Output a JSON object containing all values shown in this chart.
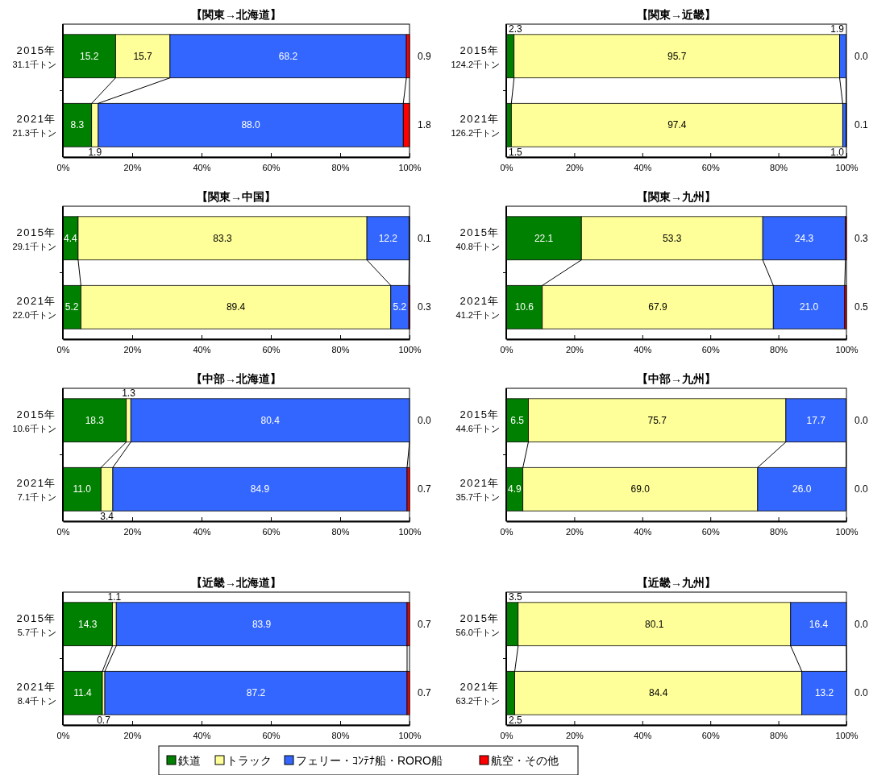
{
  "chart_data": [
    {
      "type": "bar",
      "orientation": "horizontal",
      "stacked": true,
      "legend": "bottom",
      "title": "【関東→北海道】",
      "categories": [
        "2015年\n31.1千トン",
        "2021年\n21.3千トン"
      ],
      "xlim": [
        0,
        100
      ],
      "xticks": [
        {
          "value": 0,
          "label": "0%"
        },
        {
          "value": 20,
          "label": "20%"
        },
        {
          "value": 40,
          "label": "40%"
        },
        {
          "value": 60,
          "label": "60%"
        },
        {
          "value": 80,
          "label": "80%"
        },
        {
          "value": 100,
          "label": "100%"
        }
      ],
      "series": [
        {
          "name": "鉄道",
          "color": "#008000",
          "values": [
            15.2,
            8.3
          ],
          "value_labels": [
            "15.2",
            "8.3"
          ]
        },
        {
          "name": "トラック",
          "color": "#ffff99",
          "values": [
            15.7,
            1.9
          ],
          "value_labels": [
            "15.7",
            "1.9"
          ]
        },
        {
          "name": "フェリー・ｺﾝﾃﾅ船・RORO船",
          "color": "#3366ff",
          "values": [
            68.2,
            88.0
          ],
          "value_labels": [
            "68.2",
            "88.0"
          ]
        },
        {
          "name": "航空・その他",
          "color": "#ff0000",
          "values": [
            0.9,
            1.8
          ],
          "value_labels": [
            "0.9",
            "1.8"
          ]
        }
      ]
    },
    {
      "type": "bar",
      "orientation": "horizontal",
      "stacked": true,
      "title": "【関東→近畿】",
      "categories": [
        "2015年\n124.2千トン",
        "2021年\n126.2千トン"
      ],
      "xlim": [
        0,
        100
      ],
      "xticks": [
        {
          "value": 0,
          "label": "0%"
        },
        {
          "value": 20,
          "label": "20%"
        },
        {
          "value": 40,
          "label": "40%"
        },
        {
          "value": 60,
          "label": "60%"
        },
        {
          "value": 80,
          "label": "80%"
        },
        {
          "value": 100,
          "label": "100%"
        }
      ],
      "series": [
        {
          "color": "#008000",
          "values": [
            2.3,
            1.5
          ],
          "value_labels": [
            "2.3",
            "1.5"
          ]
        },
        {
          "color": "#ffff99",
          "values": [
            95.7,
            97.4
          ],
          "value_labels": [
            "95.7",
            "97.4"
          ]
        },
        {
          "color": "#3366ff",
          "values": [
            1.9,
            1.0
          ],
          "value_labels": [
            "1.9",
            "1.0"
          ]
        },
        {
          "color": "#ff0000",
          "values": [
            0.0,
            0.1
          ],
          "value_labels": [
            "0.0",
            "0.1"
          ]
        }
      ]
    },
    {
      "type": "bar",
      "orientation": "horizontal",
      "stacked": true,
      "title": "【関東→中国】",
      "categories": [
        "2015年\n29.1千トン",
        "2021年\n22.0千トン"
      ],
      "xlim": [
        0,
        100
      ],
      "xticks": [
        {
          "value": 0,
          "label": "0%"
        },
        {
          "value": 20,
          "label": "20%"
        },
        {
          "value": 40,
          "label": "40%"
        },
        {
          "value": 60,
          "label": "60%"
        },
        {
          "value": 80,
          "label": "80%"
        },
        {
          "value": 100,
          "label": "100%"
        }
      ],
      "series": [
        {
          "color": "#008000",
          "values": [
            4.4,
            5.2
          ],
          "value_labels": [
            "4.4",
            "5.2"
          ]
        },
        {
          "color": "#ffff99",
          "values": [
            83.3,
            89.4
          ],
          "value_labels": [
            "83.3",
            "89.4"
          ]
        },
        {
          "color": "#3366ff",
          "values": [
            12.2,
            5.2
          ],
          "value_labels": [
            "12.2",
            "5.2"
          ]
        },
        {
          "color": "#ff0000",
          "values": [
            0.1,
            0.3
          ],
          "value_labels": [
            "0.1",
            "0.3"
          ]
        }
      ]
    },
    {
      "type": "bar",
      "orientation": "horizontal",
      "stacked": true,
      "title": "【関東→九州】",
      "categories": [
        "2015年\n40.8千トン",
        "2021年\n41.2千トン"
      ],
      "xlim": [
        0,
        100
      ],
      "xticks": [
        {
          "value": 0,
          "label": "0%"
        },
        {
          "value": 20,
          "label": "20%"
        },
        {
          "value": 40,
          "label": "40%"
        },
        {
          "value": 60,
          "label": "60%"
        },
        {
          "value": 80,
          "label": "80%"
        },
        {
          "value": 100,
          "label": "100%"
        }
      ],
      "series": [
        {
          "color": "#008000",
          "values": [
            22.1,
            10.6
          ],
          "value_labels": [
            "22.1",
            "10.6"
          ]
        },
        {
          "color": "#ffff99",
          "values": [
            53.3,
            67.9
          ],
          "value_labels": [
            "53.3",
            "67.9"
          ]
        },
        {
          "color": "#3366ff",
          "values": [
            24.3,
            21.0
          ],
          "value_labels": [
            "24.3",
            "21.0"
          ]
        },
        {
          "color": "#ff0000",
          "values": [
            0.3,
            0.5
          ],
          "value_labels": [
            "0.3",
            "0.5"
          ]
        }
      ]
    },
    {
      "type": "bar",
      "orientation": "horizontal",
      "stacked": true,
      "title": "【中部→北海道】",
      "categories": [
        "2015年\n10.6千トン",
        "2021年\n7.1千トン"
      ],
      "xlim": [
        0,
        100
      ],
      "xticks": [
        {
          "value": 0,
          "label": "0%"
        },
        {
          "value": 20,
          "label": "20%"
        },
        {
          "value": 40,
          "label": "40%"
        },
        {
          "value": 60,
          "label": "60%"
        },
        {
          "value": 80,
          "label": "80%"
        },
        {
          "value": 100,
          "label": "100%"
        }
      ],
      "series": [
        {
          "color": "#008000",
          "values": [
            18.3,
            11.0
          ],
          "value_labels": [
            "18.3",
            "11.0"
          ]
        },
        {
          "color": "#ffff99",
          "values": [
            1.3,
            3.4
          ],
          "value_labels": [
            "1.3",
            "3.4"
          ]
        },
        {
          "color": "#3366ff",
          "values": [
            80.4,
            84.9
          ],
          "value_labels": [
            "80.4",
            "84.9"
          ]
        },
        {
          "color": "#ff0000",
          "values": [
            0.0,
            0.7
          ],
          "value_labels": [
            "0.0",
            "0.7"
          ]
        }
      ]
    },
    {
      "type": "bar",
      "orientation": "horizontal",
      "stacked": true,
      "title": "【中部→九州】",
      "categories": [
        "2015年\n44.6千トン",
        "2021年\n35.7千トン"
      ],
      "xlim": [
        0,
        100
      ],
      "xticks": [
        {
          "value": 0,
          "label": "0%"
        },
        {
          "value": 20,
          "label": "20%"
        },
        {
          "value": 40,
          "label": "40%"
        },
        {
          "value": 60,
          "label": "60%"
        },
        {
          "value": 80,
          "label": "80%"
        },
        {
          "value": 100,
          "label": "100%"
        }
      ],
      "series": [
        {
          "color": "#008000",
          "values": [
            6.5,
            4.9
          ],
          "value_labels": [
            "6.5",
            "4.9"
          ]
        },
        {
          "color": "#ffff99",
          "values": [
            75.7,
            69.0
          ],
          "value_labels": [
            "75.7",
            "69.0"
          ]
        },
        {
          "color": "#3366ff",
          "values": [
            17.7,
            26.0
          ],
          "value_labels": [
            "17.7",
            "26.0"
          ]
        },
        {
          "color": "#ff0000",
          "values": [
            0.0,
            0.0
          ],
          "value_labels": [
            "0.0",
            "0.0"
          ]
        }
      ]
    },
    {
      "type": "bar",
      "orientation": "horizontal",
      "stacked": true,
      "title": "【近畿→北海道】",
      "categories": [
        "2015年\n5.7千トン",
        "2021年\n8.4千トン"
      ],
      "xlim": [
        0,
        100
      ],
      "xticks": [
        {
          "value": 0,
          "label": "0%"
        },
        {
          "value": 20,
          "label": "20%"
        },
        {
          "value": 40,
          "label": "40%"
        },
        {
          "value": 60,
          "label": "60%"
        },
        {
          "value": 80,
          "label": "80%"
        },
        {
          "value": 100,
          "label": "100%"
        }
      ],
      "series": [
        {
          "color": "#008000",
          "values": [
            14.3,
            11.4
          ],
          "value_labels": [
            "14.3",
            "11.4"
          ]
        },
        {
          "color": "#ffff99",
          "values": [
            1.1,
            0.7
          ],
          "value_labels": [
            "1.1",
            "0.7"
          ]
        },
        {
          "color": "#3366ff",
          "values": [
            83.9,
            87.2
          ],
          "value_labels": [
            "83.9",
            "87.2"
          ]
        },
        {
          "color": "#ff0000",
          "values": [
            0.7,
            0.7
          ],
          "value_labels": [
            "0.7",
            "0.7"
          ]
        }
      ]
    },
    {
      "type": "bar",
      "orientation": "horizontal",
      "stacked": true,
      "title": "【近畿→九州】",
      "categories": [
        "2015年\n56.0千トン",
        "2021年\n63.2千トン"
      ],
      "xlim": [
        0,
        100
      ],
      "xticks": [
        {
          "value": 0,
          "label": "0%"
        },
        {
          "value": 20,
          "label": "20%"
        },
        {
          "value": 40,
          "label": "40%"
        },
        {
          "value": 60,
          "label": "60%"
        },
        {
          "value": 80,
          "label": "80%"
        },
        {
          "value": 100,
          "label": "100%"
        }
      ],
      "series": [
        {
          "color": "#008000",
          "values": [
            3.5,
            2.5
          ],
          "value_labels": [
            "3.5",
            "2.5"
          ]
        },
        {
          "color": "#ffff99",
          "values": [
            80.1,
            84.4
          ],
          "value_labels": [
            "80.1",
            "84.4"
          ]
        },
        {
          "color": "#3366ff",
          "values": [
            16.4,
            13.2
          ],
          "value_labels": [
            "16.4",
            "13.2"
          ]
        },
        {
          "color": "#ff0000",
          "values": [
            0.0,
            0.0
          ],
          "value_labels": [
            "0.0",
            "0.0"
          ]
        }
      ]
    }
  ]
}
